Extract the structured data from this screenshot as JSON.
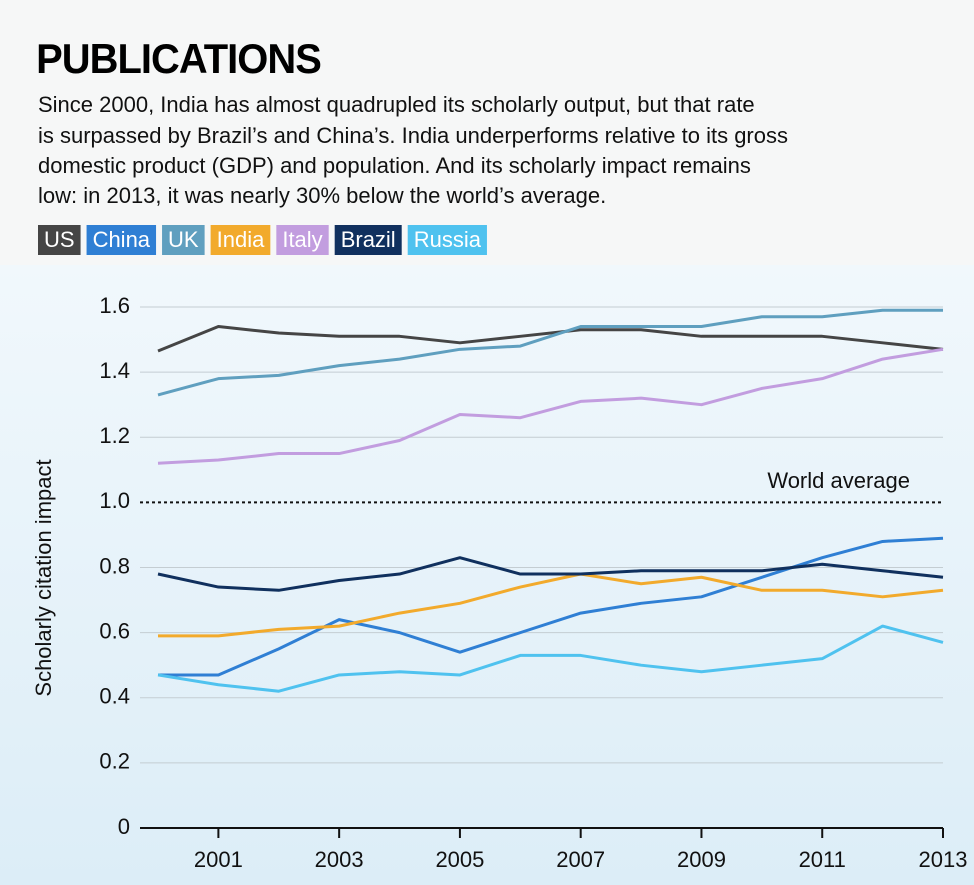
{
  "chart_data": {
    "type": "line",
    "title": "PUBLICATIONS",
    "subtitle": [
      "Since 2000, India has almost quadrupled its scholarly output, but that rate",
      "is surpassed by Brazil’s and China’s. India underperforms relative to its gross",
      "domestic product (GDP) and population. And its scholarly impact remains",
      "low: in 2013, it was nearly 30% below the world’s average."
    ],
    "y_label": "Scholarly citation impact",
    "x": [
      2000,
      2001,
      2002,
      2003,
      2004,
      2005,
      2006,
      2007,
      2008,
      2009,
      2010,
      2011,
      2012,
      2013
    ],
    "xlim": [
      2000,
      2013
    ],
    "xticks": [
      2001,
      2003,
      2005,
      2007,
      2009,
      2011,
      2013
    ],
    "ylim": [
      0,
      1.6
    ],
    "yticks": [
      0,
      0.2,
      0.4,
      0.6,
      0.8,
      1.0,
      1.2,
      1.4,
      1.6
    ],
    "grid": true,
    "reference_line": {
      "value": 1.0,
      "label": "World average"
    },
    "series": [
      {
        "name": "US",
        "color": "#454545",
        "values": [
          1.465,
          1.54,
          1.52,
          1.51,
          1.51,
          1.49,
          1.51,
          1.53,
          1.53,
          1.51,
          1.51,
          1.51,
          1.49,
          1.47
        ]
      },
      {
        "name": "China",
        "color": "#2f7fd4",
        "values": [
          0.47,
          0.47,
          0.55,
          0.64,
          0.6,
          0.54,
          0.6,
          0.66,
          0.69,
          0.71,
          0.77,
          0.83,
          0.88,
          0.89
        ]
      },
      {
        "name": "UK",
        "color": "#5f9fbf",
        "values": [
          1.33,
          1.38,
          1.39,
          1.42,
          1.44,
          1.47,
          1.48,
          1.54,
          1.54,
          1.54,
          1.57,
          1.57,
          1.59,
          1.59
        ]
      },
      {
        "name": "India",
        "color": "#f2aa2c",
        "values": [
          0.59,
          0.59,
          0.61,
          0.62,
          0.66,
          0.69,
          0.74,
          0.78,
          0.75,
          0.77,
          0.73,
          0.73,
          0.71,
          0.73
        ]
      },
      {
        "name": "Italy",
        "color": "#c29ddf",
        "values": [
          1.12,
          1.13,
          1.15,
          1.15,
          1.19,
          1.27,
          1.26,
          1.31,
          1.32,
          1.3,
          1.35,
          1.38,
          1.44,
          1.47
        ]
      },
      {
        "name": "Brazil",
        "color": "#10305e",
        "values": [
          0.78,
          0.74,
          0.73,
          0.76,
          0.78,
          0.83,
          0.78,
          0.78,
          0.79,
          0.79,
          0.79,
          0.81,
          0.79,
          0.77
        ]
      },
      {
        "name": "Russia",
        "color": "#4fc2ef",
        "values": [
          0.47,
          0.44,
          0.42,
          0.47,
          0.48,
          0.47,
          0.53,
          0.53,
          0.5,
          0.48,
          0.5,
          0.52,
          0.62,
          0.57
        ]
      }
    ]
  }
}
